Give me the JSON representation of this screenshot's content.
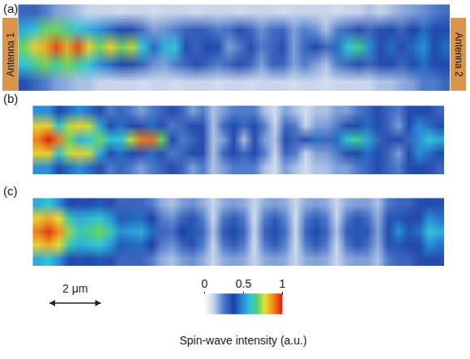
{
  "chart_data": [
    {
      "type": "heatmap",
      "title": "(a)",
      "annotations": [
        "Antenna 1",
        "Antenna 2"
      ],
      "tick_labels": false,
      "xlim": [
        0,
        16.8
      ],
      "cells": [
        [
          0.35,
          0.3,
          0.25,
          0.2,
          0.18,
          0.15,
          0.15,
          0.12,
          0.12,
          0.12,
          0.12,
          0.1,
          0.12,
          0.12,
          0.1,
          0.12,
          0.12,
          0.12,
          0.1,
          0.12,
          0.12,
          0.1,
          0.12,
          0.12,
          0.12,
          0.1,
          0.12,
          0.12,
          0.1,
          0.12,
          0.12,
          0.12,
          0.12,
          0.15,
          0.15,
          0.18,
          0.2,
          0.25,
          0.25,
          0.3
        ],
        [
          0.6,
          0.65,
          0.7,
          0.65,
          0.7,
          0.65,
          0.6,
          0.5,
          0.45,
          0.4,
          0.35,
          0.3,
          0.22,
          0.2,
          0.25,
          0.3,
          0.35,
          0.3,
          0.25,
          0.3,
          0.35,
          0.3,
          0.2,
          0.3,
          0.3,
          0.2,
          0.25,
          0.2,
          0.15,
          0.25,
          0.3,
          0.35,
          0.3,
          0.35,
          0.4,
          0.3,
          0.4,
          0.45,
          0.4,
          0.4
        ],
        [
          0.7,
          0.8,
          0.85,
          0.95,
          0.85,
          0.95,
          0.8,
          0.7,
          0.8,
          0.7,
          0.75,
          0.6,
          0.45,
          0.55,
          0.6,
          0.35,
          0.3,
          0.4,
          0.35,
          0.2,
          0.25,
          0.35,
          0.25,
          0.3,
          0.35,
          0.2,
          0.3,
          0.4,
          0.3,
          0.45,
          0.6,
          0.65,
          0.5,
          0.35,
          0.45,
          0.35,
          0.45,
          0.5,
          0.4,
          0.45
        ],
        [
          0.55,
          0.6,
          0.7,
          0.7,
          0.65,
          0.6,
          0.55,
          0.5,
          0.45,
          0.4,
          0.35,
          0.28,
          0.2,
          0.22,
          0.25,
          0.3,
          0.32,
          0.3,
          0.25,
          0.28,
          0.35,
          0.3,
          0.22,
          0.28,
          0.3,
          0.2,
          0.25,
          0.22,
          0.15,
          0.25,
          0.3,
          0.35,
          0.3,
          0.35,
          0.4,
          0.3,
          0.38,
          0.45,
          0.4,
          0.4
        ],
        [
          0.3,
          0.3,
          0.25,
          0.2,
          0.18,
          0.15,
          0.12,
          0.12,
          0.12,
          0.1,
          0.12,
          0.12,
          0.1,
          0.12,
          0.12,
          0.12,
          0.1,
          0.12,
          0.12,
          0.12,
          0.1,
          0.12,
          0.12,
          0.12,
          0.1,
          0.12,
          0.12,
          0.12,
          0.12,
          0.1,
          0.12,
          0.12,
          0.15,
          0.12,
          0.15,
          0.18,
          0.2,
          0.22,
          0.25,
          0.28
        ]
      ]
    },
    {
      "type": "heatmap",
      "title": "(b)",
      "tick_labels": false,
      "xlim": [
        0,
        16
      ],
      "cells": [
        [
          0.5,
          0.5,
          0.4,
          0.45,
          0.5,
          0.45,
          0.35,
          0.25,
          0.3,
          0.25,
          0.2,
          0.25,
          0.3,
          0.35,
          0.3,
          0.2,
          0.25,
          0.15,
          0.2,
          0.25,
          0.25,
          0.25,
          0.15,
          0.1,
          0.2,
          0.15,
          0.1,
          0.15,
          0.15,
          0.2,
          0.2,
          0.25,
          0.3,
          0.35,
          0.3,
          0.25,
          0.35,
          0.4,
          0.35,
          0.3
        ],
        [
          0.8,
          0.8,
          0.6,
          0.75,
          0.8,
          0.75,
          0.55,
          0.4,
          0.45,
          0.4,
          0.35,
          0.45,
          0.35,
          0.25,
          0.3,
          0.4,
          0.35,
          0.15,
          0.3,
          0.4,
          0.3,
          0.4,
          0.25,
          0.12,
          0.3,
          0.25,
          0.12,
          0.2,
          0.2,
          0.25,
          0.35,
          0.4,
          0.45,
          0.4,
          0.3,
          0.2,
          0.4,
          0.5,
          0.45,
          0.4
        ],
        [
          0.9,
          1,
          0.9,
          0.7,
          0.55,
          0.6,
          0.7,
          0.6,
          0.6,
          0.75,
          0.9,
          0.92,
          0.7,
          0.4,
          0.25,
          0.3,
          0.35,
          0.15,
          0.2,
          0.35,
          0.15,
          0.35,
          0.2,
          0.15,
          0.35,
          0.3,
          0.35,
          0.45,
          0.3,
          0.45,
          0.6,
          0.65,
          0.55,
          0.3,
          0.35,
          0.4,
          0.3,
          0.5,
          0.6,
          0.55
        ],
        [
          0.8,
          0.8,
          0.6,
          0.75,
          0.8,
          0.75,
          0.55,
          0.4,
          0.45,
          0.4,
          0.35,
          0.45,
          0.35,
          0.25,
          0.3,
          0.4,
          0.35,
          0.15,
          0.3,
          0.4,
          0.3,
          0.4,
          0.25,
          0.12,
          0.3,
          0.25,
          0.12,
          0.2,
          0.2,
          0.25,
          0.35,
          0.4,
          0.45,
          0.4,
          0.3,
          0.2,
          0.4,
          0.5,
          0.45,
          0.4
        ],
        [
          0.5,
          0.5,
          0.4,
          0.45,
          0.5,
          0.45,
          0.35,
          0.25,
          0.3,
          0.25,
          0.2,
          0.25,
          0.3,
          0.35,
          0.3,
          0.2,
          0.25,
          0.15,
          0.2,
          0.25,
          0.25,
          0.25,
          0.15,
          0.1,
          0.2,
          0.15,
          0.1,
          0.15,
          0.15,
          0.2,
          0.2,
          0.25,
          0.3,
          0.35,
          0.3,
          0.25,
          0.35,
          0.4,
          0.35,
          0.3
        ]
      ]
    },
    {
      "type": "heatmap",
      "title": "(c)",
      "tick_labels": false,
      "xlim": [
        0,
        16
      ],
      "cells": [
        [
          0.55,
          0.6,
          0.5,
          0.4,
          0.35,
          0.4,
          0.42,
          0.35,
          0.3,
          0.3,
          0.3,
          0.25,
          0.18,
          0.15,
          0.2,
          0.22,
          0.18,
          0.12,
          0.18,
          0.2,
          0.18,
          0.12,
          0.18,
          0.2,
          0.18,
          0.12,
          0.18,
          0.2,
          0.18,
          0.12,
          0.18,
          0.2,
          0.2,
          0.15,
          0.25,
          0.3,
          0.3,
          0.35,
          0.4,
          0.35
        ],
        [
          0.8,
          0.85,
          0.78,
          0.62,
          0.55,
          0.58,
          0.6,
          0.52,
          0.42,
          0.44,
          0.45,
          0.38,
          0.25,
          0.22,
          0.3,
          0.34,
          0.25,
          0.12,
          0.26,
          0.32,
          0.25,
          0.1,
          0.25,
          0.32,
          0.24,
          0.1,
          0.25,
          0.32,
          0.25,
          0.12,
          0.26,
          0.34,
          0.28,
          0.18,
          0.34,
          0.42,
          0.36,
          0.4,
          0.5,
          0.46
        ],
        [
          0.9,
          0.97,
          0.88,
          0.72,
          0.62,
          0.66,
          0.7,
          0.62,
          0.5,
          0.52,
          0.55,
          0.45,
          0.3,
          0.28,
          0.38,
          0.42,
          0.3,
          0.15,
          0.32,
          0.4,
          0.3,
          0.12,
          0.3,
          0.4,
          0.28,
          0.12,
          0.3,
          0.4,
          0.3,
          0.15,
          0.32,
          0.42,
          0.33,
          0.2,
          0.4,
          0.5,
          0.42,
          0.45,
          0.6,
          0.55
        ],
        [
          0.8,
          0.85,
          0.78,
          0.62,
          0.55,
          0.58,
          0.6,
          0.52,
          0.42,
          0.44,
          0.45,
          0.38,
          0.25,
          0.22,
          0.3,
          0.34,
          0.25,
          0.12,
          0.26,
          0.32,
          0.25,
          0.1,
          0.25,
          0.32,
          0.24,
          0.1,
          0.25,
          0.32,
          0.25,
          0.12,
          0.26,
          0.34,
          0.28,
          0.18,
          0.34,
          0.42,
          0.36,
          0.4,
          0.5,
          0.46
        ],
        [
          0.55,
          0.6,
          0.5,
          0.4,
          0.35,
          0.4,
          0.42,
          0.35,
          0.3,
          0.3,
          0.3,
          0.25,
          0.18,
          0.15,
          0.2,
          0.22,
          0.18,
          0.12,
          0.18,
          0.2,
          0.18,
          0.12,
          0.18,
          0.2,
          0.18,
          0.12,
          0.18,
          0.2,
          0.18,
          0.12,
          0.18,
          0.2,
          0.2,
          0.15,
          0.25,
          0.3,
          0.3,
          0.35,
          0.4,
          0.35
        ]
      ]
    }
  ],
  "color_bar": {
    "range": [
      0,
      1
    ],
    "ticks": [
      0,
      0.5,
      1
    ],
    "label": "Spin-wave intensity (a.u.)"
  },
  "scale_bar": {
    "length": 2,
    "label": "2 μm"
  }
}
